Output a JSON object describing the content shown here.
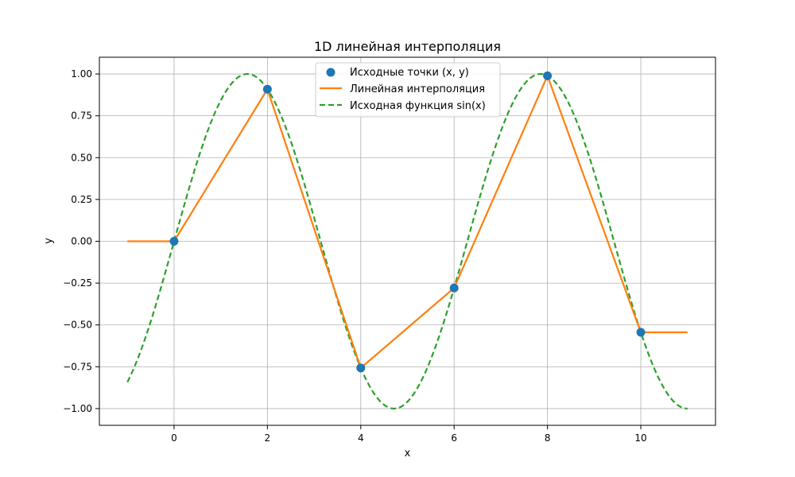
{
  "chart_data": {
    "type": "line",
    "title": "1D линейная интерполяция",
    "xlabel": "x",
    "ylabel": "y",
    "xlim": [
      -1.6,
      11.6
    ],
    "ylim": [
      -1.1,
      1.1
    ],
    "xticks": [
      0,
      2,
      4,
      6,
      8,
      10
    ],
    "yticks": [
      -1.0,
      -0.75,
      -0.5,
      -0.25,
      0.0,
      0.25,
      0.5,
      0.75,
      1.0
    ],
    "xtick_labels": [
      "0",
      "2",
      "4",
      "6",
      "8",
      "10"
    ],
    "ytick_labels": [
      "−1.00",
      "−0.75",
      "−0.50",
      "−0.25",
      "0.00",
      "0.25",
      "0.50",
      "0.75",
      "1.00"
    ],
    "grid": true,
    "legend_position": "top-center",
    "series": [
      {
        "name": "Исходные точки (x, y)",
        "kind": "scatter",
        "color": "#1f77b4",
        "x": [
          0,
          2,
          4,
          6,
          8,
          10
        ],
        "y": [
          0.0,
          0.909,
          -0.757,
          -0.279,
          0.989,
          -0.544
        ]
      },
      {
        "name": "Линейная интерполяция",
        "kind": "line",
        "color": "#ff7f0e",
        "x": [
          -1,
          0,
          2,
          4,
          6,
          8,
          10,
          11
        ],
        "y": [
          0.0,
          0.0,
          0.909,
          -0.757,
          -0.279,
          0.989,
          -0.544,
          -0.544
        ]
      },
      {
        "name": "Исходная функция sin(x)",
        "kind": "dashed-line",
        "color": "#2ca02c",
        "function": "sin",
        "x_range": [
          -1,
          11
        ]
      }
    ]
  }
}
